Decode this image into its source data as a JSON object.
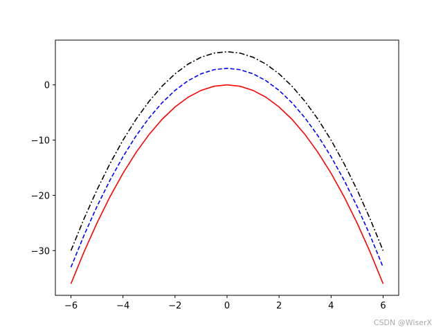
{
  "chart_data": {
    "type": "line",
    "x": [
      -6,
      -5.5,
      -5,
      -4.5,
      -4,
      -3.5,
      -3,
      -2.5,
      -2,
      -1.5,
      -1,
      -0.5,
      0,
      0.5,
      1,
      1.5,
      2,
      2.5,
      3,
      3.5,
      4,
      4.5,
      5,
      5.5,
      6
    ],
    "series": [
      {
        "color": "#ff0000",
        "dash": "solid",
        "values": [
          -36,
          -30.25,
          -25,
          -20.25,
          -16,
          -12.25,
          -9,
          -6.25,
          -4,
          -2.25,
          -1,
          -0.25,
          0,
          -0.25,
          -1,
          -2.25,
          -4,
          -6.25,
          -9,
          -12.25,
          -16,
          -20.25,
          -25,
          -30.25,
          -36
        ]
      },
      {
        "color": "#0000ff",
        "dash": "dashed",
        "values": [
          -33,
          -27.25,
          -22,
          -17.25,
          -13,
          -9.25,
          -6,
          -3.25,
          -1,
          0.75,
          2,
          2.75,
          3,
          2.75,
          2,
          0.75,
          -1,
          -3.25,
          -6,
          -9.25,
          -13,
          -17.25,
          -22,
          -27.25,
          -33
        ]
      },
      {
        "color": "#000000",
        "dash": "dashdot",
        "values": [
          -30,
          -24.25,
          -19,
          -14.25,
          -10,
          -6.25,
          -3,
          -0.25,
          2,
          3.75,
          5,
          5.75,
          6,
          5.75,
          5,
          3.75,
          2,
          -0.25,
          -3,
          -6.25,
          -10,
          -14.25,
          -19,
          -24.25,
          -30
        ]
      }
    ],
    "xlim": [
      -6.6,
      6.6
    ],
    "ylim": [
      -38.1,
      8.1
    ],
    "xticks": [
      {
        "value": -6,
        "label": "−6"
      },
      {
        "value": -4,
        "label": "−4"
      },
      {
        "value": -2,
        "label": "−2"
      },
      0,
      2,
      4,
      6
    ],
    "yticks": [
      {
        "value": -30,
        "label": "−30"
      },
      {
        "value": -20,
        "label": "−20"
      },
      {
        "value": -10,
        "label": "−10"
      },
      0
    ],
    "watermark": "CSDN @WiserX"
  }
}
